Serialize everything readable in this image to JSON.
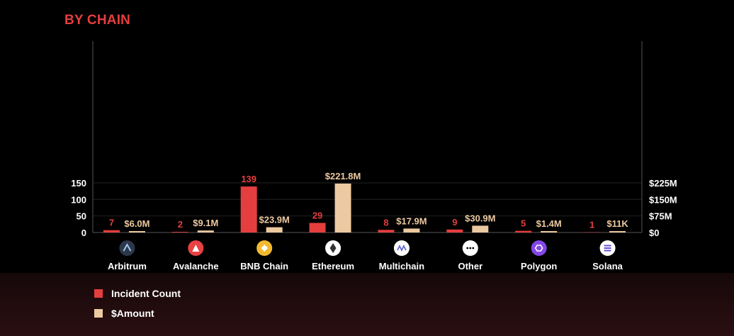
{
  "page": {
    "title": "BY CHAIN",
    "title_color": "#e53e3e"
  },
  "chart_data": {
    "type": "bar",
    "title": "BY CHAIN",
    "categories": [
      "Arbitrum",
      "Avalanche",
      "BNB Chain",
      "Ethereum",
      "Multichain",
      "Other",
      "Polygon",
      "Solana"
    ],
    "category_icons": [
      "arbitrum-logo-icon",
      "avalanche-logo-icon",
      "bnb-logo-icon",
      "ethereum-logo-icon",
      "multichain-logo-icon",
      "other-dots-icon",
      "polygon-logo-icon",
      "solana-logo-icon"
    ],
    "series": [
      {
        "name": "Incident Count",
        "axis": "left",
        "color": "#e53e3e",
        "values": [
          7,
          2,
          139,
          29,
          8,
          9,
          5,
          1
        ],
        "labels": [
          "7",
          "2",
          "139",
          "29",
          "8",
          "9",
          "5",
          "1"
        ]
      },
      {
        "name": "$Amount",
        "axis": "right",
        "color": "#ecc9a0",
        "values": [
          6.0,
          9.1,
          23.9,
          221.8,
          17.9,
          30.9,
          1.4,
          0.011
        ],
        "labels": [
          "$6.0M",
          "$9.1M",
          "$23.9M",
          "$221.8M",
          "$17.9M",
          "$30.9M",
          "$1.4M",
          "$11K"
        ]
      }
    ],
    "y_left": {
      "min": 0,
      "max": 180,
      "ticks": [
        0,
        50,
        100,
        150
      ],
      "tick_labels": [
        "0",
        "50",
        "100",
        "150"
      ]
    },
    "y_right": {
      "min": 0,
      "max": 270,
      "unit": "$M",
      "ticks": [
        0,
        75,
        150,
        225
      ],
      "tick_labels": [
        "$0",
        "$75M",
        "$150M",
        "$225M"
      ]
    },
    "grid": true,
    "legend_position": "bottom-left"
  }
}
